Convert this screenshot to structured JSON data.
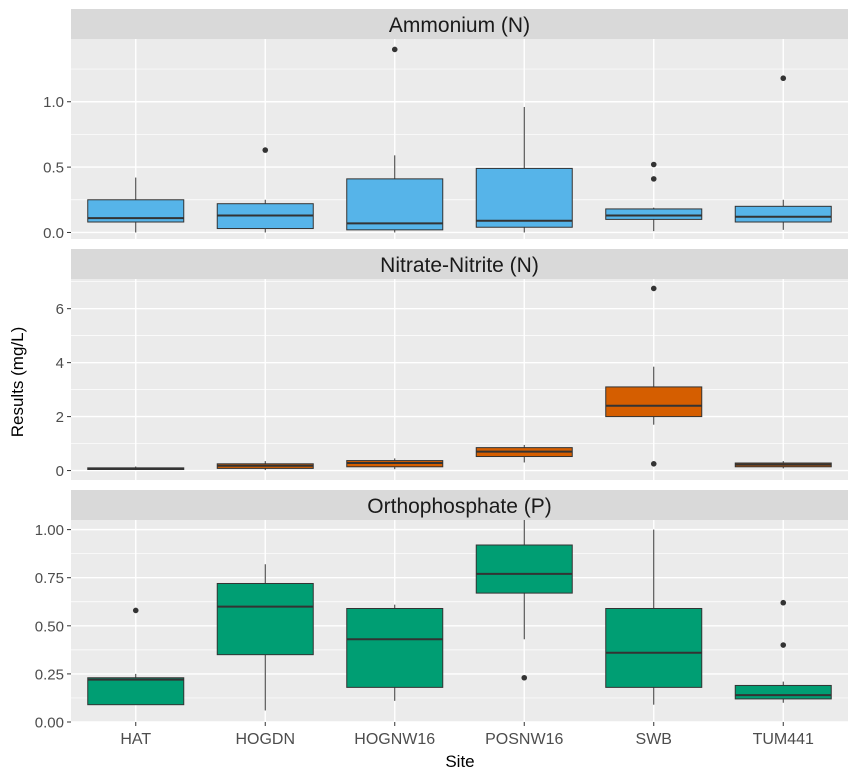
{
  "chart_data": {
    "type": "boxplot",
    "xlabel": "Site",
    "ylabel": "Results (mg/L)",
    "categories": [
      "HAT",
      "HOGDN",
      "HOGNW16",
      "POSNW16",
      "SWB",
      "TUM441"
    ],
    "grid": true,
    "legend": "none",
    "panels": [
      {
        "title": "Ammonium (N)",
        "fill": "#56B4E9",
        "ylim": [
          -0.05,
          1.48
        ],
        "yticks": [
          0.0,
          0.5,
          1.0
        ],
        "ytick_labels": [
          "0.0",
          "0.5",
          "1.0"
        ],
        "boxes": [
          {
            "site": "HAT",
            "whisker_low": 0.0,
            "q1": 0.08,
            "median": 0.11,
            "q3": 0.25,
            "whisker_high": 0.42,
            "outliers": []
          },
          {
            "site": "HOGDN",
            "whisker_low": 0.0,
            "q1": 0.03,
            "median": 0.13,
            "q3": 0.22,
            "whisker_high": 0.25,
            "outliers": [
              0.63
            ]
          },
          {
            "site": "HOGNW16",
            "whisker_low": 0.0,
            "q1": 0.02,
            "median": 0.07,
            "q3": 0.41,
            "whisker_high": 0.59,
            "outliers": [
              1.4
            ]
          },
          {
            "site": "POSNW16",
            "whisker_low": 0.0,
            "q1": 0.04,
            "median": 0.09,
            "q3": 0.49,
            "whisker_high": 0.96,
            "outliers": []
          },
          {
            "site": "SWB",
            "whisker_low": 0.01,
            "q1": 0.1,
            "median": 0.13,
            "q3": 0.18,
            "whisker_high": 0.19,
            "outliers": [
              0.41,
              0.52
            ]
          },
          {
            "site": "TUM441",
            "whisker_low": 0.02,
            "q1": 0.08,
            "median": 0.12,
            "q3": 0.2,
            "whisker_high": 0.25,
            "outliers": [
              1.18
            ]
          }
        ]
      },
      {
        "title": "Nitrate-Nitrite (N)",
        "fill": "#D55E00",
        "ylim": [
          -0.35,
          7.1
        ],
        "yticks": [
          0,
          2,
          4,
          6
        ],
        "ytick_labels": [
          "0",
          "2",
          "4",
          "6"
        ],
        "boxes": [
          {
            "site": "HAT",
            "whisker_low": 0.02,
            "q1": 0.04,
            "median": 0.07,
            "q3": 0.1,
            "whisker_high": 0.15,
            "outliers": []
          },
          {
            "site": "HOGDN",
            "whisker_low": 0.02,
            "q1": 0.08,
            "median": 0.18,
            "q3": 0.25,
            "whisker_high": 0.35,
            "outliers": []
          },
          {
            "site": "HOGNW16",
            "whisker_low": 0.05,
            "q1": 0.14,
            "median": 0.28,
            "q3": 0.37,
            "whisker_high": 0.45,
            "outliers": []
          },
          {
            "site": "POSNW16",
            "whisker_low": 0.3,
            "q1": 0.52,
            "median": 0.7,
            "q3": 0.85,
            "whisker_high": 0.95,
            "outliers": []
          },
          {
            "site": "SWB",
            "whisker_low": 1.7,
            "q1": 2.0,
            "median": 2.4,
            "q3": 3.1,
            "whisker_high": 3.85,
            "outliers": [
              0.25,
              6.75
            ]
          },
          {
            "site": "TUM441",
            "whisker_low": 0.08,
            "q1": 0.14,
            "median": 0.22,
            "q3": 0.28,
            "whisker_high": 0.35,
            "outliers": []
          }
        ]
      },
      {
        "title": "Orthophosphate (P)",
        "fill": "#009E73",
        "ylim": [
          0.0,
          1.05
        ],
        "yticks": [
          0.0,
          0.25,
          0.5,
          0.75,
          1.0
        ],
        "ytick_labels": [
          "0.00",
          "0.25",
          "0.50",
          "0.75",
          "1.00"
        ],
        "boxes": [
          {
            "site": "HAT",
            "whisker_low": 0.09,
            "q1": 0.09,
            "median": 0.22,
            "q3": 0.23,
            "whisker_high": 0.25,
            "outliers": [
              0.58
            ]
          },
          {
            "site": "HOGDN",
            "whisker_low": 0.06,
            "q1": 0.35,
            "median": 0.6,
            "q3": 0.72,
            "whisker_high": 0.82,
            "outliers": []
          },
          {
            "site": "HOGNW16",
            "whisker_low": 0.11,
            "q1": 0.18,
            "median": 0.43,
            "q3": 0.59,
            "whisker_high": 0.61,
            "outliers": []
          },
          {
            "site": "POSNW16",
            "whisker_low": 0.43,
            "q1": 0.67,
            "median": 0.77,
            "q3": 0.92,
            "whisker_high": 1.05,
            "outliers": [
              0.23
            ]
          },
          {
            "site": "SWB",
            "whisker_low": 0.09,
            "q1": 0.18,
            "median": 0.36,
            "q3": 0.59,
            "whisker_high": 1.0,
            "outliers": []
          },
          {
            "site": "TUM441",
            "whisker_low": 0.1,
            "q1": 0.12,
            "median": 0.14,
            "q3": 0.19,
            "whisker_high": 0.21,
            "outliers": [
              0.4,
              0.62
            ]
          }
        ]
      }
    ],
    "colors": {
      "panel_background": "#EBEBEB",
      "strip_background": "#D9D9D9",
      "grid_line": "#FFFFFF",
      "box_outline": "#333333",
      "point": "#333333",
      "axis_text": "#4D4D4D"
    }
  }
}
